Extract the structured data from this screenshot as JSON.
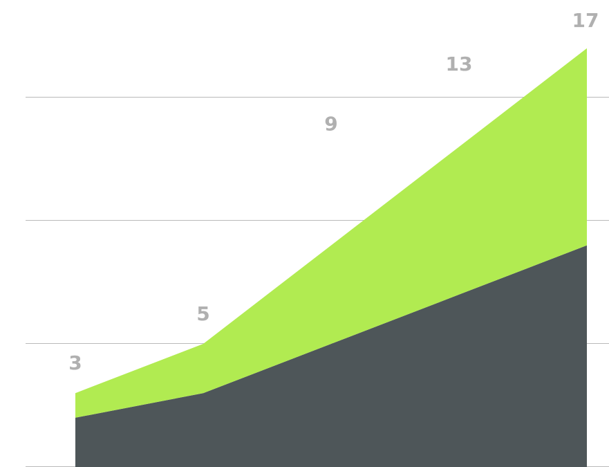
{
  "chart_data": {
    "type": "area",
    "stacked": true,
    "x": [
      1,
      2,
      3,
      4,
      5
    ],
    "series": [
      {
        "values": [
          2,
          3,
          5,
          7,
          9
        ],
        "color": "#4e5659"
      },
      {
        "values": [
          1,
          2,
          4,
          6,
          8
        ],
        "color": "#b1eb51"
      }
    ],
    "data_labels": [
      "3",
      "5",
      "9",
      "13",
      "17"
    ],
    "ylim": [
      0,
      18
    ],
    "y_gridlines": [
      0,
      5,
      10,
      15
    ],
    "grid": true,
    "legend": "none",
    "label_color": "#b0b0b0"
  }
}
